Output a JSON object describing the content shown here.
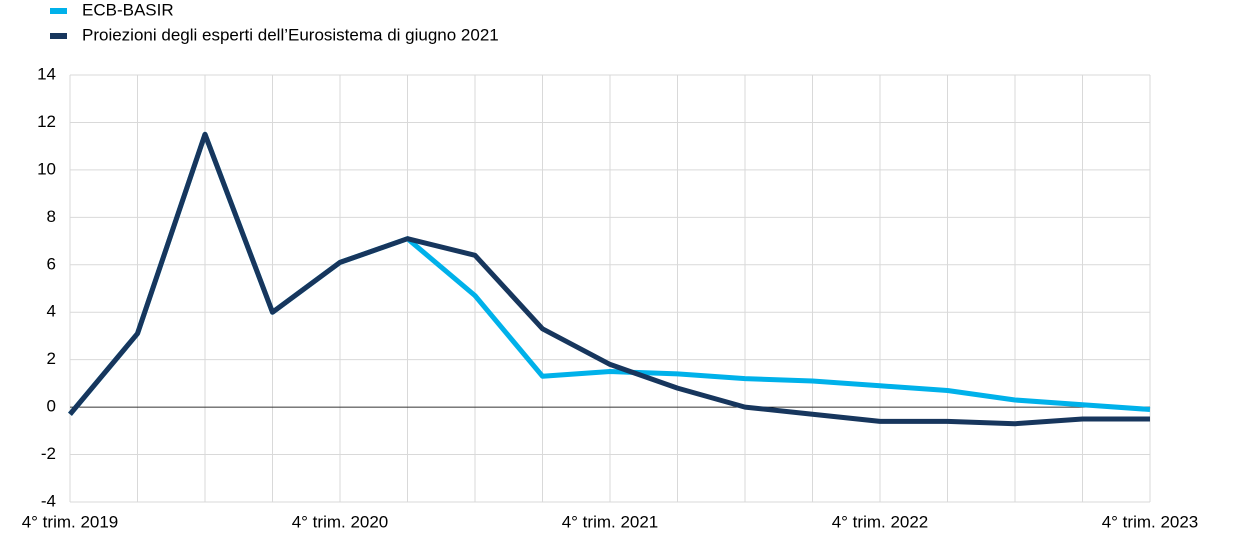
{
  "chart_data": {
    "type": "line",
    "categories": [
      "4° trim. 2019",
      null,
      null,
      null,
      "4° trim. 2020",
      null,
      null,
      null,
      "4° trim. 2021",
      null,
      null,
      null,
      "4° trim. 2022",
      null,
      null,
      null,
      "4° trim. 2023"
    ],
    "series": [
      {
        "name": "ECB-BASIR",
        "color": "#00b1ea",
        "values": [
          -0.3,
          3.1,
          11.5,
          4.0,
          6.1,
          7.1,
          4.7,
          1.3,
          1.5,
          1.4,
          1.2,
          1.1,
          0.9,
          0.7,
          0.3,
          0.1,
          -0.1
        ]
      },
      {
        "name": "Proiezioni degli esperti dell’Eurosistema di giugno 2021",
        "color": "#17365d",
        "values": [
          -0.3,
          3.1,
          11.5,
          4.0,
          6.1,
          7.1,
          6.4,
          3.3,
          1.8,
          0.8,
          0.0,
          -0.3,
          -0.6,
          -0.6,
          -0.7,
          -0.5,
          -0.5
        ]
      }
    ],
    "ylim": [
      -4,
      14
    ],
    "yticks": [
      -4,
      -2,
      0,
      2,
      4,
      6,
      8,
      10,
      12,
      14
    ],
    "grid": true,
    "legend": "top-left"
  }
}
